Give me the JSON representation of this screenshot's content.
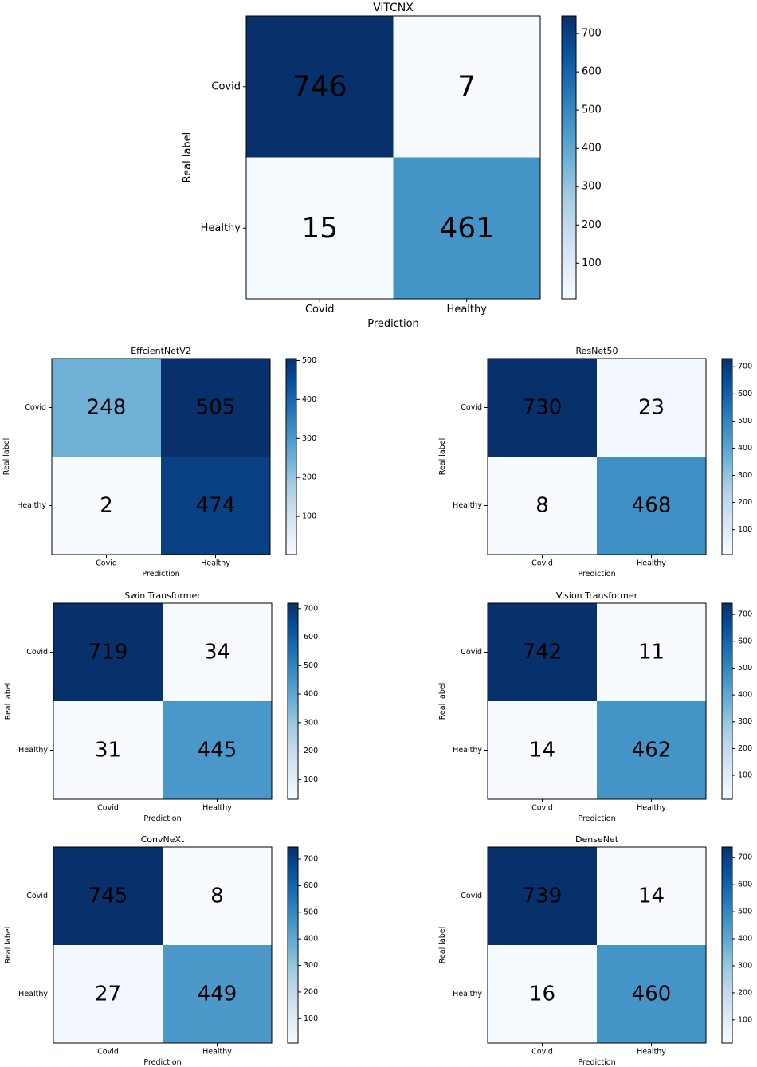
{
  "chart_data": [
    {
      "type": "heatmap",
      "title": "ViTCNX",
      "xlabel": "Prediction",
      "ylabel": "Real label",
      "x_categories": [
        "Covid",
        "Healthy"
      ],
      "y_categories": [
        "Covid",
        "Healthy"
      ],
      "values": [
        [
          746,
          7
        ],
        [
          15,
          461
        ]
      ],
      "colorbar_ticks": [
        100,
        200,
        300,
        400,
        500,
        600,
        700
      ],
      "colorscale": "Blues"
    },
    {
      "type": "heatmap",
      "title": "EffcientNetV2",
      "xlabel": "Prediction",
      "ylabel": "Real label",
      "x_categories": [
        "Covid",
        "Healthy"
      ],
      "y_categories": [
        "Covid",
        "Healthy"
      ],
      "values": [
        [
          248,
          505
        ],
        [
          2,
          474
        ]
      ],
      "colorbar_ticks": [
        100,
        200,
        300,
        400,
        500
      ],
      "colorscale": "Blues"
    },
    {
      "type": "heatmap",
      "title": "ResNet50",
      "xlabel": "Prediction",
      "ylabel": "Real label",
      "x_categories": [
        "Covid",
        "Healthy"
      ],
      "y_categories": [
        "Covid",
        "Healthy"
      ],
      "values": [
        [
          730,
          23
        ],
        [
          8,
          468
        ]
      ],
      "colorbar_ticks": [
        100,
        200,
        300,
        400,
        500,
        600,
        700
      ],
      "colorscale": "Blues"
    },
    {
      "type": "heatmap",
      "title": "Swin Transformer",
      "xlabel": "Prediction",
      "ylabel": "Real label",
      "x_categories": [
        "Covid",
        "Healthy"
      ],
      "y_categories": [
        "Covid",
        "Healthy"
      ],
      "values": [
        [
          719,
          34
        ],
        [
          31,
          445
        ]
      ],
      "colorbar_ticks": [
        100,
        200,
        300,
        400,
        500,
        600,
        700
      ],
      "colorscale": "Blues"
    },
    {
      "type": "heatmap",
      "title": "Vision Transformer",
      "xlabel": "Prediction",
      "ylabel": "Real label",
      "x_categories": [
        "Covid",
        "Healthy"
      ],
      "y_categories": [
        "Covid",
        "Healthy"
      ],
      "values": [
        [
          742,
          11
        ],
        [
          14,
          462
        ]
      ],
      "colorbar_ticks": [
        100,
        200,
        300,
        400,
        500,
        600,
        700
      ],
      "colorscale": "Blues"
    },
    {
      "type": "heatmap",
      "title": "ConvNeXt",
      "xlabel": "Prediction",
      "ylabel": "Real label",
      "x_categories": [
        "Covid",
        "Healthy"
      ],
      "y_categories": [
        "Covid",
        "Healthy"
      ],
      "values": [
        [
          745,
          8
        ],
        [
          27,
          449
        ]
      ],
      "colorbar_ticks": [
        100,
        200,
        300,
        400,
        500,
        600,
        700
      ],
      "colorscale": "Blues"
    },
    {
      "type": "heatmap",
      "title": "DenseNet",
      "xlabel": "Prediction",
      "ylabel": "Real label",
      "x_categories": [
        "Covid",
        "Healthy"
      ],
      "y_categories": [
        "Covid",
        "Healthy"
      ],
      "values": [
        [
          739,
          14
        ],
        [
          16,
          460
        ]
      ],
      "colorbar_ticks": [
        100,
        200,
        300,
        400,
        500,
        600,
        700
      ],
      "colorscale": "Blues"
    }
  ]
}
